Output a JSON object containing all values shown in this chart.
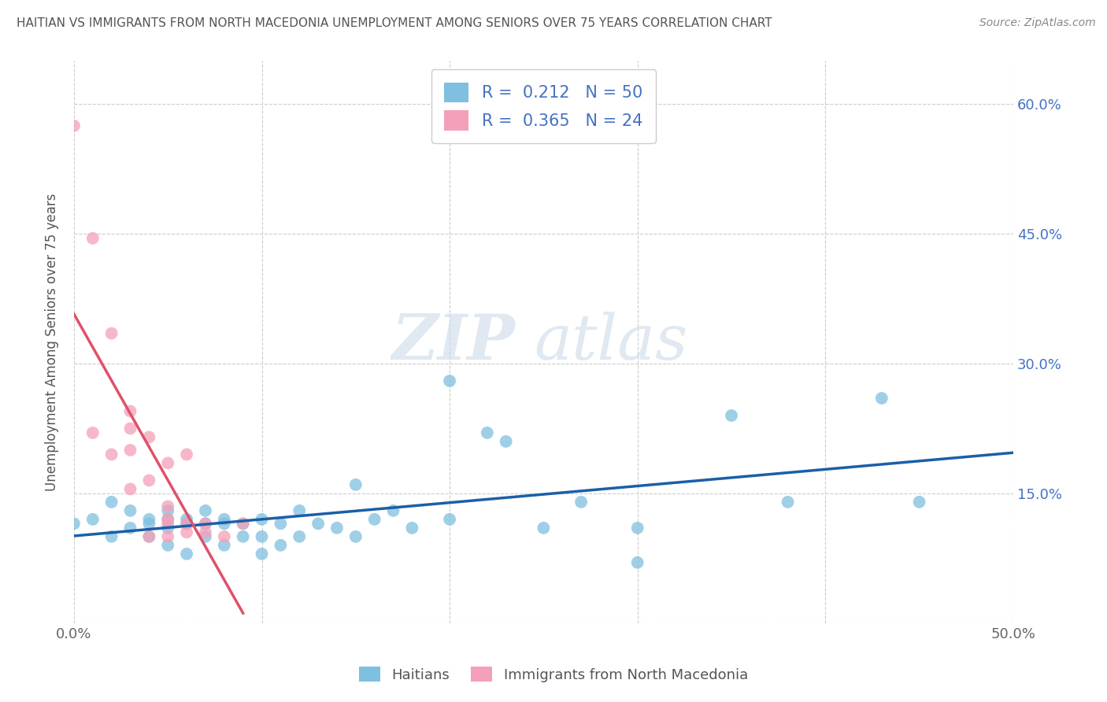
{
  "title": "HAITIAN VS IMMIGRANTS FROM NORTH MACEDONIA UNEMPLOYMENT AMONG SENIORS OVER 75 YEARS CORRELATION CHART",
  "source": "Source: ZipAtlas.com",
  "ylabel": "Unemployment Among Seniors over 75 years",
  "xlim": [
    0.0,
    0.5
  ],
  "ylim": [
    0.0,
    0.65
  ],
  "x_ticks": [
    0.0,
    0.1,
    0.2,
    0.3,
    0.4,
    0.5
  ],
  "x_tick_labels": [
    "0.0%",
    "",
    "",
    "",
    "",
    "50.0%"
  ],
  "y_ticks": [
    0.0,
    0.15,
    0.3,
    0.45,
    0.6
  ],
  "y_tick_labels": [
    "",
    "15.0%",
    "30.0%",
    "45.0%",
    "60.0%"
  ],
  "haitian_R": 0.212,
  "haitian_N": 50,
  "macedonian_R": 0.365,
  "macedonian_N": 24,
  "blue_color": "#7fbfdf",
  "pink_color": "#f4a0b8",
  "blue_line_color": "#1a5fa8",
  "pink_line_color": "#e0506a",
  "grid_color": "#cccccc",
  "watermark_zip": "ZIP",
  "watermark_atlas": "atlas",
  "haitian_x": [
    0.0,
    0.01,
    0.02,
    0.02,
    0.03,
    0.03,
    0.04,
    0.04,
    0.04,
    0.05,
    0.05,
    0.05,
    0.05,
    0.06,
    0.06,
    0.06,
    0.07,
    0.07,
    0.07,
    0.08,
    0.08,
    0.08,
    0.09,
    0.09,
    0.1,
    0.1,
    0.1,
    0.11,
    0.11,
    0.12,
    0.12,
    0.13,
    0.14,
    0.15,
    0.15,
    0.16,
    0.17,
    0.18,
    0.2,
    0.2,
    0.22,
    0.23,
    0.25,
    0.27,
    0.3,
    0.3,
    0.35,
    0.38,
    0.43,
    0.45
  ],
  "haitian_y": [
    0.115,
    0.12,
    0.1,
    0.14,
    0.11,
    0.13,
    0.1,
    0.12,
    0.115,
    0.09,
    0.11,
    0.13,
    0.12,
    0.08,
    0.12,
    0.115,
    0.1,
    0.13,
    0.115,
    0.09,
    0.12,
    0.115,
    0.1,
    0.115,
    0.08,
    0.1,
    0.12,
    0.09,
    0.115,
    0.1,
    0.13,
    0.115,
    0.11,
    0.1,
    0.16,
    0.12,
    0.13,
    0.11,
    0.28,
    0.12,
    0.22,
    0.21,
    0.11,
    0.14,
    0.07,
    0.11,
    0.24,
    0.14,
    0.26,
    0.14
  ],
  "macedonian_x": [
    0.0,
    0.01,
    0.01,
    0.02,
    0.02,
    0.03,
    0.03,
    0.03,
    0.03,
    0.04,
    0.04,
    0.04,
    0.05,
    0.05,
    0.05,
    0.05,
    0.05,
    0.06,
    0.06,
    0.06,
    0.07,
    0.07,
    0.08,
    0.09
  ],
  "macedonian_y": [
    0.575,
    0.445,
    0.22,
    0.195,
    0.335,
    0.225,
    0.245,
    0.155,
    0.2,
    0.215,
    0.165,
    0.1,
    0.135,
    0.115,
    0.185,
    0.12,
    0.1,
    0.115,
    0.195,
    0.105,
    0.115,
    0.105,
    0.1,
    0.115
  ]
}
